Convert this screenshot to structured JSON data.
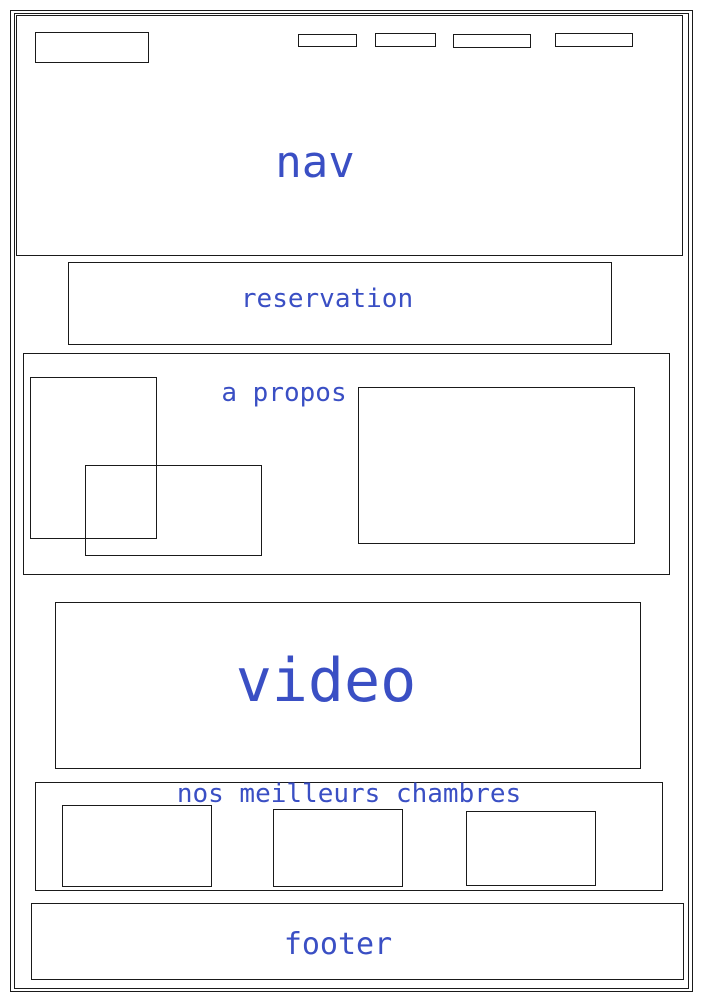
{
  "colors": {
    "label": "#3a4fc4",
    "stroke": "#1a1a1a",
    "background": "#ffffff"
  },
  "nav": {
    "label": "nav"
  },
  "reservation": {
    "label": "reservation"
  },
  "about": {
    "label": "a propos"
  },
  "video": {
    "label": "video"
  },
  "rooms": {
    "label": "nos meilleurs chambres"
  },
  "footer": {
    "label": "footer"
  }
}
